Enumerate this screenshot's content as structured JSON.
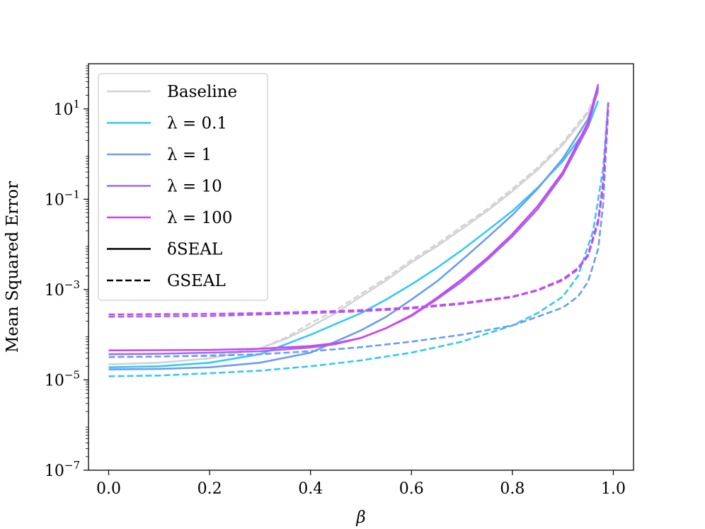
{
  "chart_data": {
    "type": "line",
    "title": "",
    "xlabel": "β",
    "ylabel": "Mean Squared Error",
    "xscale": "linear",
    "yscale": "log",
    "xlim": [
      -0.04,
      1.04
    ],
    "ylim": [
      1e-07,
      100
    ],
    "xticks": [
      0.0,
      0.2,
      0.4,
      0.6,
      0.8,
      1.0
    ],
    "xtick_labels": [
      "0.0",
      "0.2",
      "0.4",
      "0.6",
      "0.8",
      "1.0"
    ],
    "yticks": [
      1e-07,
      1e-05,
      0.001,
      0.1,
      10
    ],
    "ytick_labels": [
      {
        "base": "10",
        "exp": "−7"
      },
      {
        "base": "10",
        "exp": "−5"
      },
      {
        "base": "10",
        "exp": "−3"
      },
      {
        "base": "10",
        "exp": "−1"
      },
      {
        "base": "10",
        "exp": "1"
      }
    ],
    "grid": false,
    "legend_position": "upper-left",
    "legend": [
      {
        "label": "Baseline",
        "color": "#d3d3d3",
        "style": "solid"
      },
      {
        "label": "λ = 0.1",
        "color": "#33c9f5",
        "style": "solid"
      },
      {
        "label": "λ = 1",
        "color": "#6a9ef0",
        "style": "solid"
      },
      {
        "label": "λ = 10",
        "color": "#9b6df0",
        "style": "solid"
      },
      {
        "label": "λ = 100",
        "color": "#cc44ee",
        "style": "solid"
      },
      {
        "label": "δSEAL",
        "color": "#000000",
        "style": "solid"
      },
      {
        "label": "GSEAL",
        "color": "#000000",
        "style": "dashed"
      }
    ],
    "series": [
      {
        "name": "Baseline δSEAL",
        "color": "#d3d3d3",
        "style": "solid",
        "x": [
          0,
          0.1,
          0.2,
          0.3,
          0.35,
          0.4,
          0.45,
          0.5,
          0.55,
          0.6,
          0.65,
          0.7,
          0.75,
          0.8,
          0.85,
          0.9,
          0.95,
          0.97
        ],
        "y": [
          2.2e-05,
          2.4e-05,
          3e-05,
          5e-05,
          8e-05,
          0.00015,
          0.0003,
          0.0007,
          0.0016,
          0.004,
          0.009,
          0.022,
          0.055,
          0.15,
          0.45,
          1.6,
          8,
          25
        ]
      },
      {
        "name": "Baseline GSEAL",
        "color": "#d3d3d3",
        "style": "dashed",
        "x": [
          0,
          0.1,
          0.2,
          0.3,
          0.35,
          0.4,
          0.45,
          0.5,
          0.55,
          0.6,
          0.65,
          0.7,
          0.75,
          0.8,
          0.85,
          0.9,
          0.95,
          0.97
        ],
        "y": [
          3.2e-05,
          3.3e-05,
          3.5e-05,
          5e-05,
          8.5e-05,
          0.00018,
          0.00035,
          0.0008,
          0.0018,
          0.0045,
          0.01,
          0.025,
          0.06,
          0.17,
          0.5,
          1.8,
          9,
          28
        ]
      },
      {
        "name": "λ = 0.1 δSEAL",
        "color": "#33c9f5",
        "style": "solid",
        "x": [
          0,
          0.1,
          0.2,
          0.3,
          0.4,
          0.5,
          0.55,
          0.6,
          0.65,
          0.7,
          0.75,
          0.8,
          0.85,
          0.9,
          0.95,
          0.97
        ],
        "y": [
          1.9e-05,
          2e-05,
          2.4e-05,
          3.7e-05,
          0.0001,
          0.0003,
          0.0006,
          0.0013,
          0.003,
          0.0075,
          0.02,
          0.055,
          0.18,
          0.7,
          4,
          15
        ]
      },
      {
        "name": "λ = 0.1 GSEAL",
        "color": "#33c9f5",
        "style": "dashed",
        "x": [
          0,
          0.1,
          0.2,
          0.3,
          0.4,
          0.5,
          0.6,
          0.7,
          0.8,
          0.85,
          0.9,
          0.93,
          0.96,
          0.98,
          0.99
        ],
        "y": [
          1.2e-05,
          1.25e-05,
          1.4e-05,
          1.6e-05,
          2e-05,
          2.7e-05,
          4e-05,
          7e-05,
          0.00016,
          0.0003,
          0.0007,
          0.002,
          0.02,
          0.5,
          15
        ]
      },
      {
        "name": "λ = 1 δSEAL",
        "color": "#6a9ef0",
        "style": "solid",
        "x": [
          0,
          0.1,
          0.2,
          0.3,
          0.4,
          0.5,
          0.55,
          0.6,
          0.65,
          0.7,
          0.75,
          0.8,
          0.85,
          0.9,
          0.95,
          0.97
        ],
        "y": [
          1.7e-05,
          1.75e-05,
          1.9e-05,
          2.4e-05,
          4e-05,
          0.000125,
          0.00025,
          0.0006,
          0.0015,
          0.0045,
          0.014,
          0.045,
          0.17,
          0.8,
          6,
          25
        ]
      },
      {
        "name": "λ = 1 GSEAL",
        "color": "#6a9ef0",
        "style": "dashed",
        "x": [
          0,
          0.1,
          0.2,
          0.3,
          0.4,
          0.5,
          0.6,
          0.7,
          0.8,
          0.85,
          0.9,
          0.93,
          0.95,
          0.97,
          0.98,
          0.99
        ],
        "y": [
          3.2e-05,
          3.3e-05,
          3.4e-05,
          3.7e-05,
          4.3e-05,
          5.3e-05,
          7e-05,
          0.0001,
          0.00016,
          0.00025,
          0.0004,
          0.0007,
          0.0015,
          0.008,
          0.08,
          10
        ]
      },
      {
        "name": "λ = 10 δSEAL",
        "color": "#9b6df0",
        "style": "solid",
        "x": [
          0,
          0.1,
          0.2,
          0.3,
          0.4,
          0.45,
          0.5,
          0.55,
          0.6,
          0.65,
          0.7,
          0.75,
          0.8,
          0.85,
          0.9,
          0.95,
          0.97
        ],
        "y": [
          3.7e-05,
          3.8e-05,
          4e-05,
          4.3e-05,
          5.2e-05,
          6.2e-05,
          8.5e-05,
          0.00014,
          0.00026,
          0.0006,
          0.0015,
          0.0045,
          0.015,
          0.06,
          0.35,
          4,
          30
        ]
      },
      {
        "name": "λ = 10 GSEAL",
        "color": "#9b6df0",
        "style": "dashed",
        "x": [
          0,
          0.1,
          0.2,
          0.3,
          0.4,
          0.5,
          0.6,
          0.7,
          0.8,
          0.85,
          0.9,
          0.93,
          0.95,
          0.97,
          0.98,
          0.99
        ],
        "y": [
          0.00025,
          0.000255,
          0.00026,
          0.00028,
          0.0003,
          0.00033,
          0.00038,
          0.00048,
          0.00068,
          0.00095,
          0.0016,
          0.0028,
          0.0055,
          0.03,
          0.2,
          12
        ]
      },
      {
        "name": "λ = 100 δSEAL",
        "color": "#cc44ee",
        "style": "solid",
        "x": [
          0,
          0.1,
          0.2,
          0.3,
          0.4,
          0.45,
          0.5,
          0.55,
          0.6,
          0.65,
          0.7,
          0.75,
          0.8,
          0.85,
          0.9,
          0.95,
          0.97
        ],
        "y": [
          4.5e-05,
          4.55e-05,
          4.6e-05,
          4.9e-05,
          5.6e-05,
          6.5e-05,
          8.5e-05,
          0.00014,
          0.00027,
          0.00065,
          0.0017,
          0.005,
          0.017,
          0.07,
          0.4,
          5,
          35
        ]
      },
      {
        "name": "λ = 100 GSEAL",
        "color": "#cc44ee",
        "style": "dashed",
        "x": [
          0,
          0.1,
          0.2,
          0.3,
          0.4,
          0.5,
          0.6,
          0.7,
          0.8,
          0.85,
          0.9,
          0.93,
          0.95,
          0.97,
          0.98,
          0.99
        ],
        "y": [
          0.00028,
          0.000285,
          0.00029,
          0.0003,
          0.00032,
          0.00035,
          0.0004,
          0.0005,
          0.0007,
          0.00098,
          0.0017,
          0.003,
          0.006,
          0.035,
          0.25,
          14
        ]
      }
    ]
  }
}
